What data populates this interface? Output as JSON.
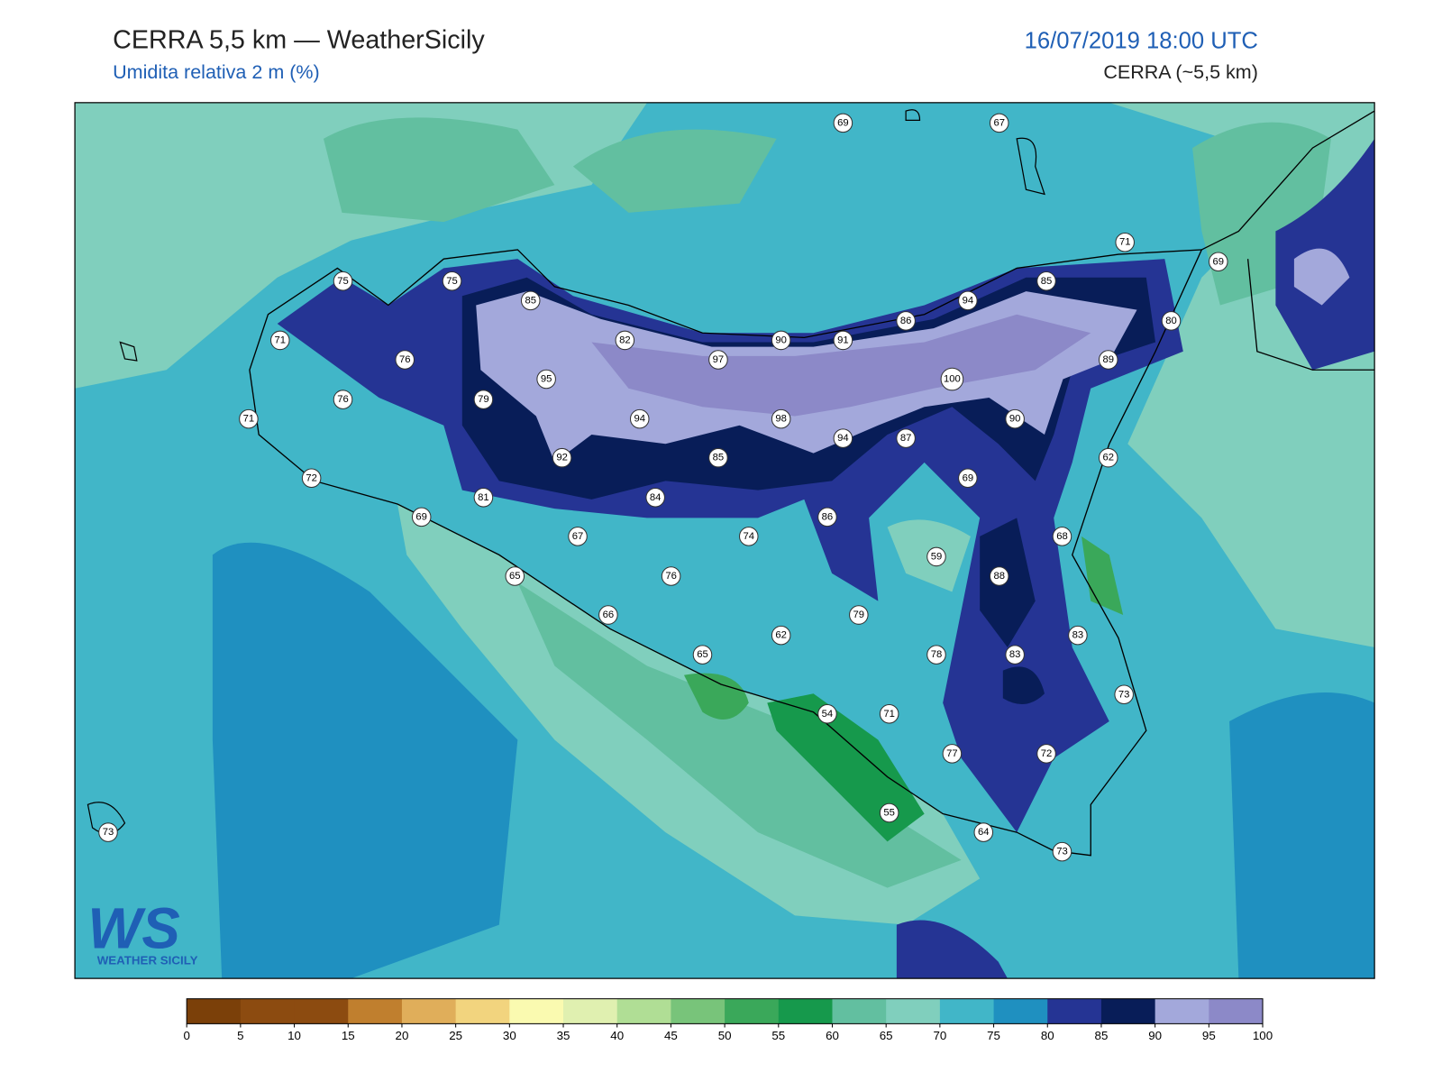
{
  "header": {
    "title": "CERRA 5,5 km — WeatherSicily",
    "subtitle": "Umidita relativa 2 m (%)",
    "datetime": "16/07/2019 18:00 UTC",
    "model": "CERRA (~5,5 km)"
  },
  "stations": [
    69,
    67,
    71,
    69,
    75,
    75,
    85,
    94,
    85,
    80,
    71,
    82,
    90,
    91,
    86,
    76,
    97,
    89,
    100,
    95,
    76,
    79,
    71,
    94,
    98,
    90,
    94,
    87,
    92,
    85,
    62,
    72,
    69,
    81,
    84,
    69,
    86,
    67,
    74,
    68,
    59,
    65,
    76,
    88,
    66,
    79,
    62,
    83,
    65,
    78,
    83,
    73,
    54,
    71,
    77,
    72,
    55,
    64,
    73,
    73
  ],
  "colorbar": {
    "ticks": [
      0,
      5,
      10,
      15,
      20,
      25,
      30,
      35,
      40,
      45,
      50,
      55,
      60,
      65,
      70,
      75,
      80,
      85,
      90,
      95,
      100
    ],
    "colors": [
      "#7b4009",
      "#8c4b10",
      "#8c4b10",
      "#c07f2e",
      "#e0ae5a",
      "#f2d47e",
      "#fafab0",
      "#e0f0b0",
      "#b0de95",
      "#78c47a",
      "#3aa85a",
      "#16994c",
      "#62bfa0",
      "#80cfbd",
      "#41b6c8",
      "#1f90c0",
      "#253494",
      "#081d58",
      "#a3a8db",
      "#8c89c8"
    ]
  },
  "logo": {
    "mark": "WS",
    "text": "WEATHER SICILY"
  }
}
